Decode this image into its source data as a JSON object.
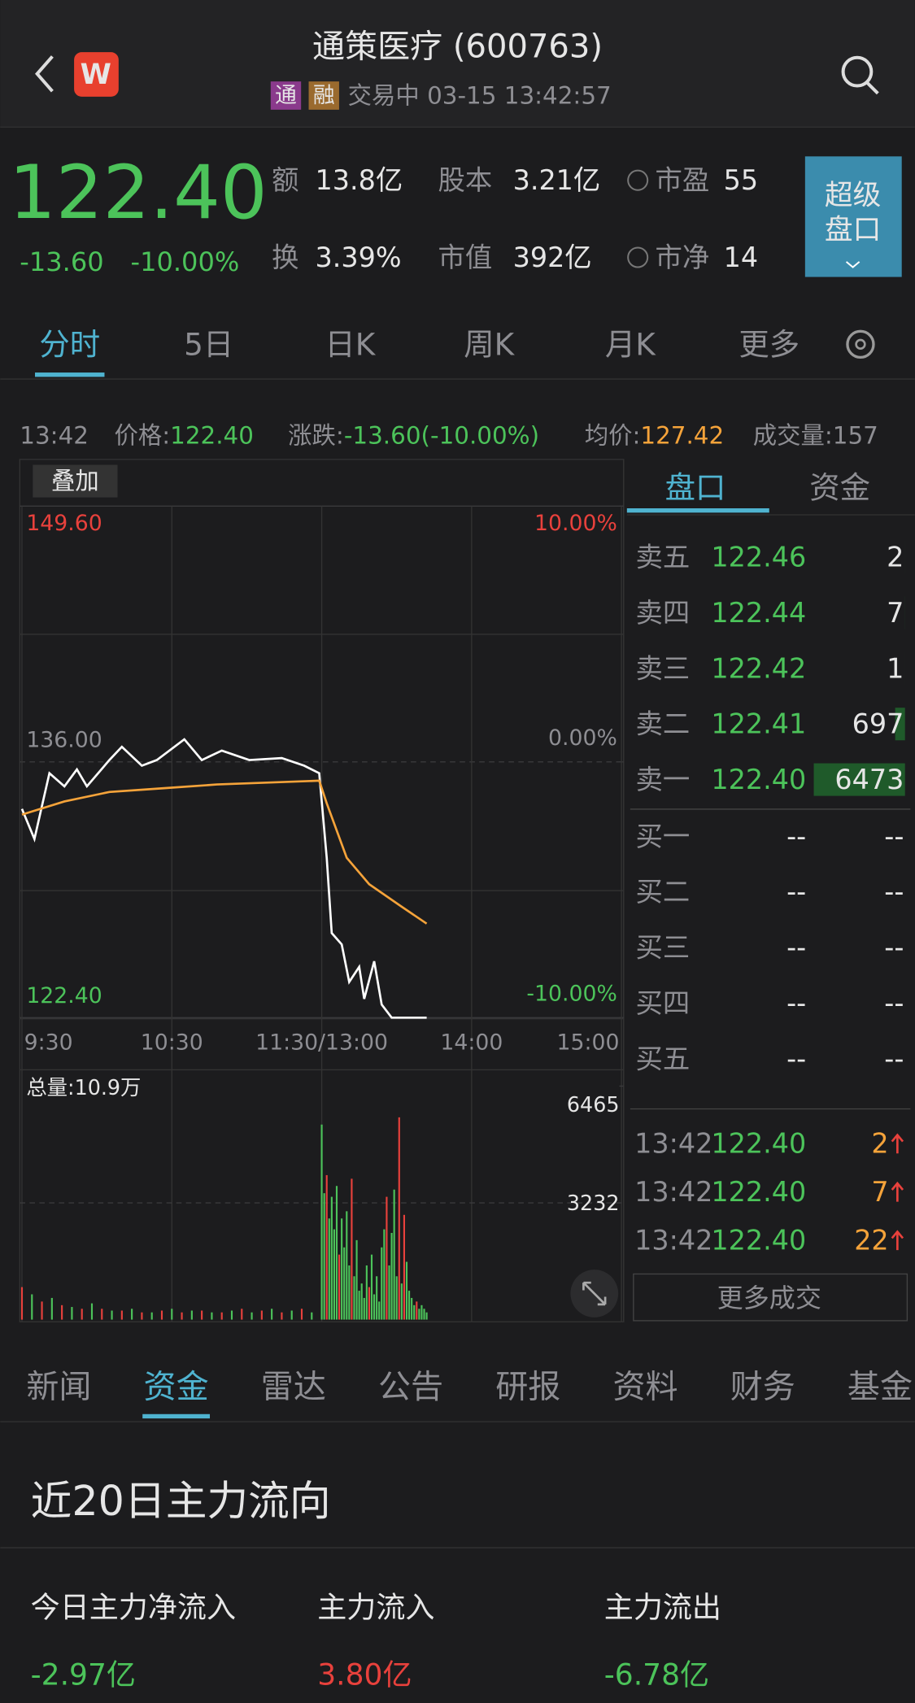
{
  "header": {
    "logo": "W",
    "title": "通策医疗 (600763)",
    "tags": [
      "通",
      "融"
    ],
    "status": "交易中 03-15 13:42:57"
  },
  "quote": {
    "price": "122.40",
    "change": "-13.60",
    "change_pct": "-10.00%",
    "stats": [
      {
        "label": "额",
        "value": "13.8亿"
      },
      {
        "label": "股本",
        "value": "3.21亿"
      },
      {
        "label": "市盈",
        "value": "55"
      },
      {
        "label": "换",
        "value": "3.39%"
      },
      {
        "label": "市值",
        "value": "392亿"
      },
      {
        "label": "市净",
        "value": "14"
      }
    ],
    "super_button": [
      "超级",
      "盘口"
    ]
  },
  "tabs": [
    "分时",
    "5日",
    "日K",
    "周K",
    "月K",
    "更多"
  ],
  "info_bar": {
    "time": "13:42",
    "items": [
      {
        "label": "价格:",
        "value": "122.40"
      },
      {
        "label": "涨跌:",
        "value": "-13.60(-10.00%)"
      },
      {
        "label": "均价:",
        "value": "127.42"
      },
      {
        "label": "成交量:",
        "value": "157"
      }
    ]
  },
  "overlay_button": "叠加",
  "chart_data": [
    {
      "type": "line",
      "xlim": [
        0,
        240
      ],
      "xticks": [
        {
          "value": 0,
          "label": "9:30"
        },
        {
          "value": 60,
          "label": "10:30"
        },
        {
          "value": 120,
          "label": "11:30/13:00"
        },
        {
          "value": 180,
          "label": "14:00"
        },
        {
          "value": 240,
          "label": "15:00"
        }
      ],
      "ylim": [
        122.4,
        149.6
      ],
      "yticks": [
        {
          "value": 149.6,
          "label": "149.60"
        },
        {
          "value": 136,
          "label": "136.00"
        },
        {
          "value": 122.4,
          "label": "122.40"
        }
      ],
      "y2lim": [
        -10,
        10
      ],
      "y2ticks": [
        {
          "value": 10,
          "label": "10.00%"
        },
        {
          "value": 0,
          "label": "0.00%"
        },
        {
          "value": -10,
          "label": "-10.00%"
        }
      ],
      "series": [
        {
          "color": "#ffffff",
          "x": [
            0,
            5,
            11,
            17,
            22,
            26,
            35,
            40,
            48,
            54,
            65,
            72,
            80,
            91,
            104,
            113,
            119,
            122,
            124,
            128,
            131,
            135,
            137,
            141,
            144,
            148,
            162
          ],
          "values": [
            133.5,
            131.9,
            135.4,
            134.7,
            135.6,
            134.7,
            136.1,
            136.8,
            135.8,
            136.1,
            137.2,
            136.1,
            136.6,
            136.1,
            136.2,
            135.8,
            135.4,
            130.9,
            126.9,
            126.3,
            124.3,
            125.1,
            123.4,
            125.4,
            123.1,
            122.4,
            122.4
          ]
        },
        {
          "color": "#f5a33a",
          "x": [
            0,
            17,
            35,
            57,
            78,
            119,
            122,
            130,
            139,
            152,
            162
          ],
          "values": [
            133.2,
            133.9,
            134.4,
            134.6,
            134.8,
            135.0,
            133.8,
            130.9,
            129.5,
            128.3,
            127.4
          ]
        }
      ]
    },
    {
      "type": "bar",
      "title": "总量:10.9万",
      "xlim": [
        0,
        240
      ],
      "ylim": [
        0,
        6465
      ],
      "yticks": [
        6465,
        3232
      ],
      "series": [
        {
          "color": "#e8413c",
          "x": [
            0,
            8,
            16,
            24,
            32,
            40,
            48,
            56,
            64,
            72,
            80,
            88,
            96,
            104,
            112,
            122,
            127,
            132,
            139,
            146,
            151,
            153,
            158
          ],
          "values": [
            900,
            500,
            400,
            300,
            300,
            250,
            200,
            250,
            200,
            250,
            200,
            300,
            250,
            200,
            300,
            4000,
            1800,
            3900,
            900,
            3400,
            5600,
            2900,
            500
          ]
        },
        {
          "color": "#4cc35a",
          "x": [
            4,
            12,
            20,
            28,
            36,
            44,
            52,
            60,
            68,
            76,
            84,
            92,
            100,
            108,
            116,
            120,
            121,
            123,
            124,
            125,
            126,
            128,
            129,
            130,
            131,
            133,
            134,
            135,
            136,
            137,
            138,
            140,
            141,
            142,
            143,
            144,
            145,
            147,
            148,
            149,
            150,
            152,
            154,
            155,
            156,
            157,
            159,
            160,
            161,
            162
          ],
          "values": [
            700,
            600,
            350,
            450,
            250,
            300,
            200,
            300,
            250,
            200,
            250,
            200,
            300,
            250,
            200,
            5400,
            3500,
            2800,
            3400,
            2500,
            3700,
            2800,
            2000,
            3000,
            1500,
            1200,
            2200,
            800,
            1000,
            600,
            1500,
            1800,
            700,
            1200,
            500,
            2000,
            2500,
            1500,
            2400,
            3600,
            1200,
            1000,
            1600,
            800,
            600,
            400,
            300,
            400,
            300,
            200
          ]
        }
      ]
    }
  ],
  "order_book": {
    "tabs": [
      "盘口",
      "资金"
    ],
    "asks": [
      {
        "label": "卖五",
        "price": "122.46",
        "qty": 2
      },
      {
        "label": "卖四",
        "price": "122.44",
        "qty": 7
      },
      {
        "label": "卖三",
        "price": "122.42",
        "qty": 1
      },
      {
        "label": "卖二",
        "price": "122.41",
        "qty": 697
      },
      {
        "label": "卖一",
        "price": "122.40",
        "qty": 6473
      }
    ],
    "bids": [
      {
        "label": "买一",
        "price": "--",
        "qty": "--"
      },
      {
        "label": "买二",
        "price": "--",
        "qty": "--"
      },
      {
        "label": "买三",
        "price": "--",
        "qty": "--"
      },
      {
        "label": "买四",
        "price": "--",
        "qty": "--"
      },
      {
        "label": "买五",
        "price": "--",
        "qty": "--"
      }
    ],
    "trades": [
      {
        "time": "13:42",
        "price": "122.40",
        "qty": 2
      },
      {
        "time": "13:42",
        "price": "122.40",
        "qty": 7
      },
      {
        "time": "13:42",
        "price": "122.40",
        "qty": 22
      }
    ],
    "more": "更多成交"
  },
  "bottom_tabs": [
    "新闻",
    "资金",
    "雷达",
    "公告",
    "研报",
    "资料",
    "财务",
    "基金"
  ],
  "section": {
    "title": "近20日主力流向",
    "flows": [
      {
        "label": "今日主力净流入",
        "value": "-2.97亿"
      },
      {
        "label": "主力流入",
        "value": "3.80亿"
      },
      {
        "label": "主力流出",
        "value": "-6.78亿"
      }
    ]
  }
}
